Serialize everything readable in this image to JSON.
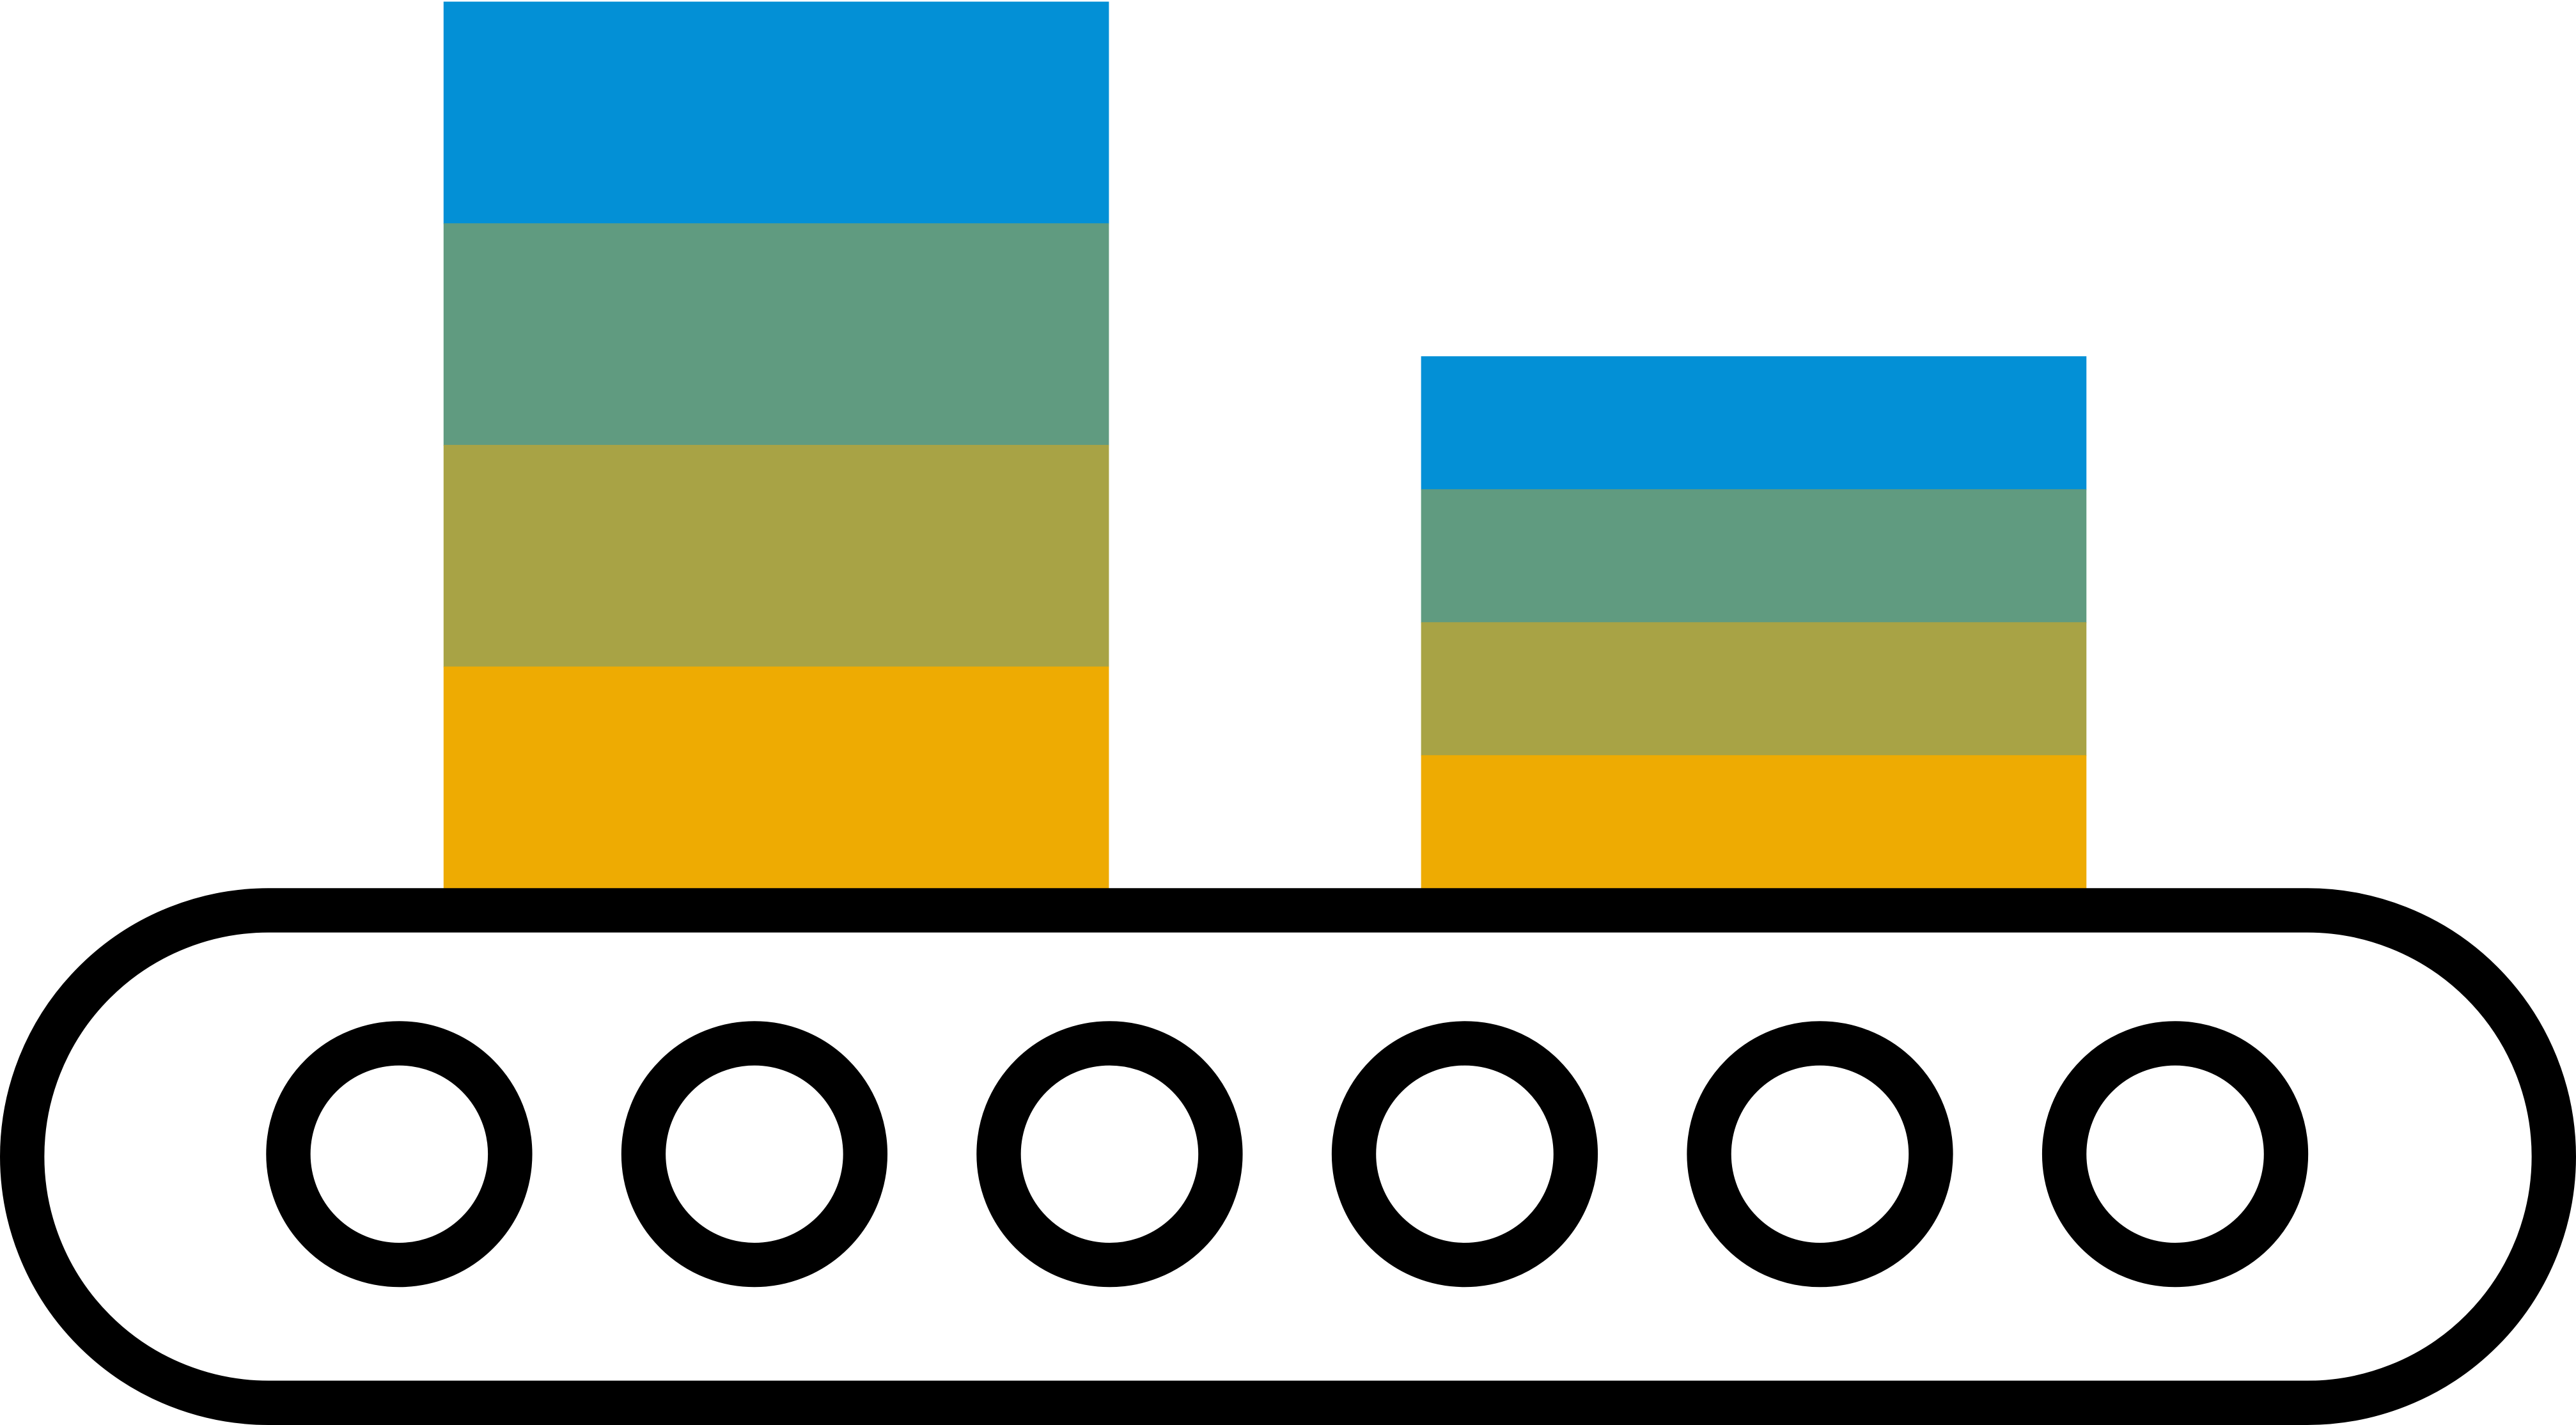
{
  "icon": "conveyor-belt-with-stacked-boxes-icon",
  "colors": {
    "outline": "#000000",
    "background": "#ffffff",
    "band_top": "#0390D6",
    "band_second": "#609B80",
    "band_third": "#A8A345",
    "band_bottom": "#EEAB02"
  },
  "stacks": [
    {
      "name": "tall-stack",
      "bands": [
        "band_top",
        "band_second",
        "band_third",
        "band_bottom"
      ]
    },
    {
      "name": "short-stack",
      "bands": [
        "band_top",
        "band_second",
        "band_third",
        "band_bottom"
      ]
    }
  ],
  "roller_count": 6
}
